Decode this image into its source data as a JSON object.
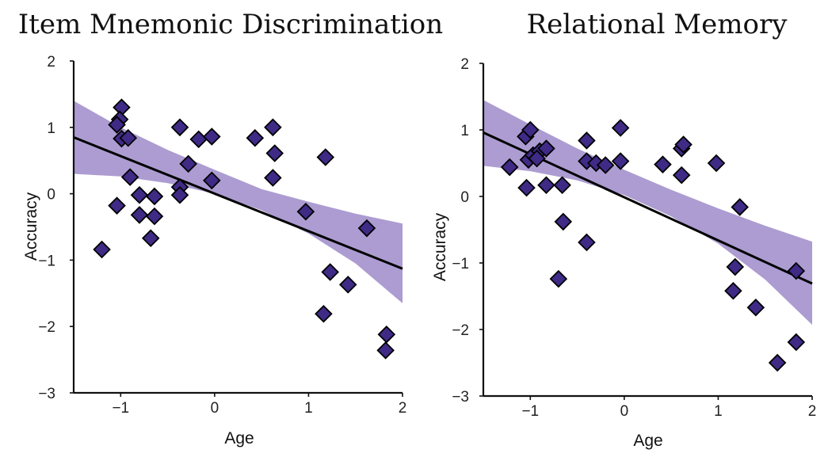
{
  "colors": {
    "band": "#9d8bc9",
    "point_fill": "#3f2a86",
    "line": "#000000"
  },
  "chart_data": [
    {
      "type": "scatter",
      "title": "Item Mnemonic Discrimination",
      "xlabel": "Age",
      "ylabel": "Accuracy",
      "xlim": [
        -1.5,
        2
      ],
      "ylim": [
        -3,
        2
      ],
      "xticks": [
        -1,
        0,
        1,
        2
      ],
      "yticks": [
        -3,
        -2,
        -1,
        0,
        1,
        2
      ],
      "xtick_labels": [
        "−1",
        "0",
        "1",
        "2"
      ],
      "ytick_labels": [
        "−3",
        "−2",
        "−1",
        "0",
        "1",
        "2"
      ],
      "fit": {
        "x": [
          -1.5,
          2
        ],
        "y": [
          0.85,
          -1.13
        ]
      },
      "band": {
        "x": [
          -1.5,
          -1.0,
          -0.5,
          0.0,
          0.5,
          1.0,
          1.5,
          2.0
        ],
        "upper": [
          1.4,
          1.0,
          0.66,
          0.36,
          0.07,
          -0.12,
          -0.3,
          -0.45
        ],
        "lower": [
          0.3,
          0.26,
          0.16,
          0.0,
          -0.25,
          -0.6,
          -1.05,
          -1.65
        ]
      },
      "points": [
        {
          "x": -0.99,
          "y": 1.3
        },
        {
          "x": -1.01,
          "y": 1.12
        },
        {
          "x": -1.04,
          "y": 1.04
        },
        {
          "x": -0.99,
          "y": 0.83
        },
        {
          "x": -0.92,
          "y": 0.84
        },
        {
          "x": -0.9,
          "y": 0.25
        },
        {
          "x": -1.04,
          "y": -0.18
        },
        {
          "x": -0.8,
          "y": -0.02
        },
        {
          "x": -0.8,
          "y": -0.32
        },
        {
          "x": -0.64,
          "y": -0.04
        },
        {
          "x": -0.64,
          "y": -0.34
        },
        {
          "x": -0.68,
          "y": -0.67
        },
        {
          "x": -1.2,
          "y": -0.84
        },
        {
          "x": -0.37,
          "y": 1.0
        },
        {
          "x": -0.37,
          "y": 0.1
        },
        {
          "x": -0.37,
          "y": -0.02
        },
        {
          "x": -0.28,
          "y": 0.45
        },
        {
          "x": -0.17,
          "y": 0.82
        },
        {
          "x": -0.03,
          "y": 0.86
        },
        {
          "x": -0.03,
          "y": 0.2
        },
        {
          "x": 0.43,
          "y": 0.84
        },
        {
          "x": 0.62,
          "y": 1.0
        },
        {
          "x": 0.64,
          "y": 0.61
        },
        {
          "x": 0.62,
          "y": 0.24
        },
        {
          "x": 0.97,
          "y": -0.27
        },
        {
          "x": 1.18,
          "y": 0.55
        },
        {
          "x": 1.23,
          "y": -1.18
        },
        {
          "x": 1.16,
          "y": -1.81
        },
        {
          "x": 1.42,
          "y": -1.37
        },
        {
          "x": 1.62,
          "y": -0.52
        },
        {
          "x": 1.83,
          "y": -2.12
        },
        {
          "x": 1.82,
          "y": -2.36
        }
      ]
    },
    {
      "type": "scatter",
      "title": "Relational Memory",
      "xlabel": "Age",
      "ylabel": "Accuracy",
      "xlim": [
        -1.5,
        2
      ],
      "ylim": [
        -3,
        2
      ],
      "xticks": [
        -1,
        0,
        1,
        2
      ],
      "yticks": [
        -3,
        -2,
        -1,
        0,
        1,
        2
      ],
      "xtick_labels": [
        "−1",
        "0",
        "1",
        "2"
      ],
      "ytick_labels": [
        "−3",
        "−2",
        "−1",
        "0",
        "1",
        "2"
      ],
      "fit": {
        "x": [
          -1.5,
          2
        ],
        "y": [
          0.96,
          -1.31
        ]
      },
      "band": {
        "x": [
          -1.5,
          -1.0,
          -0.5,
          0.0,
          0.5,
          1.0,
          1.5,
          2.0
        ],
        "upper": [
          1.45,
          1.08,
          0.72,
          0.4,
          0.1,
          -0.18,
          -0.44,
          -0.68
        ],
        "lower": [
          0.46,
          0.38,
          0.24,
          0.02,
          -0.3,
          -0.71,
          -1.25,
          -1.93
        ]
      },
      "points": [
        {
          "x": -1.22,
          "y": 0.44
        },
        {
          "x": -1.04,
          "y": 0.13
        },
        {
          "x": -1.05,
          "y": 0.9
        },
        {
          "x": -1.0,
          "y": 1.0
        },
        {
          "x": -1.02,
          "y": 0.55
        },
        {
          "x": -0.97,
          "y": 0.62
        },
        {
          "x": -0.9,
          "y": 0.68
        },
        {
          "x": -0.93,
          "y": 0.57
        },
        {
          "x": -0.83,
          "y": 0.72
        },
        {
          "x": -0.83,
          "y": 0.17
        },
        {
          "x": -0.66,
          "y": 0.17
        },
        {
          "x": -0.65,
          "y": -0.38
        },
        {
          "x": -0.7,
          "y": -1.24
        },
        {
          "x": -0.4,
          "y": 0.84
        },
        {
          "x": -0.4,
          "y": 0.53
        },
        {
          "x": -0.4,
          "y": -0.69
        },
        {
          "x": -0.3,
          "y": 0.5
        },
        {
          "x": -0.2,
          "y": 0.47
        },
        {
          "x": -0.04,
          "y": 0.53
        },
        {
          "x": -0.04,
          "y": 1.03
        },
        {
          "x": 0.41,
          "y": 0.48
        },
        {
          "x": 0.61,
          "y": 0.72
        },
        {
          "x": 0.63,
          "y": 0.78
        },
        {
          "x": 0.61,
          "y": 0.32
        },
        {
          "x": 0.98,
          "y": 0.5
        },
        {
          "x": 1.23,
          "y": -0.16
        },
        {
          "x": 1.18,
          "y": -1.06
        },
        {
          "x": 1.16,
          "y": -1.42
        },
        {
          "x": 1.4,
          "y": -1.67
        },
        {
          "x": 1.63,
          "y": -2.5
        },
        {
          "x": 1.83,
          "y": -2.19
        },
        {
          "x": 1.83,
          "y": -1.12
        }
      ]
    }
  ]
}
